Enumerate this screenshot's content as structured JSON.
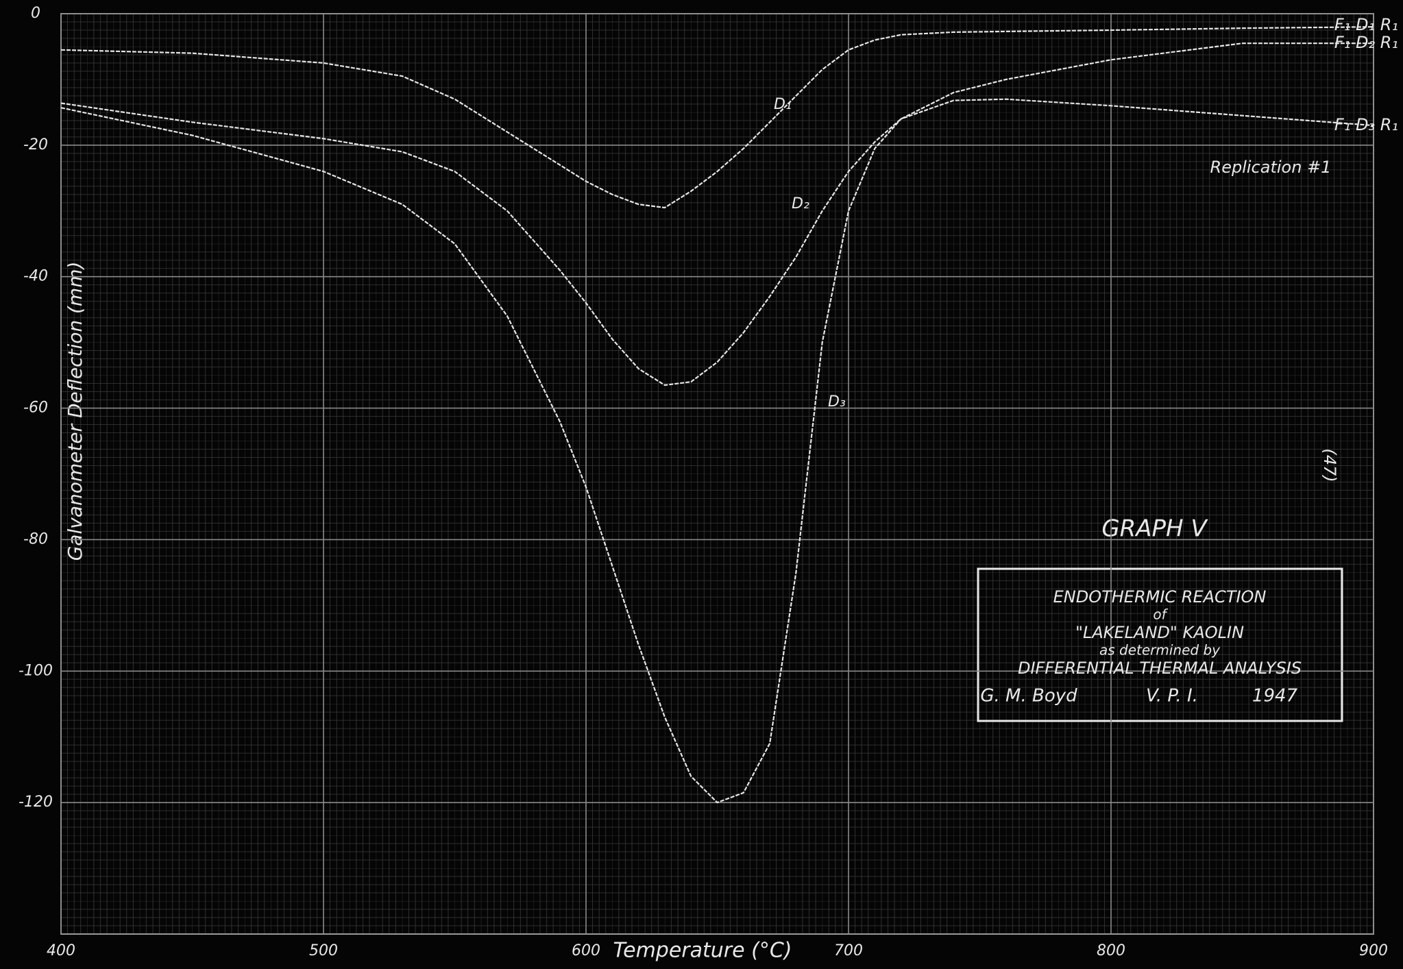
{
  "chart_data": {
    "type": "line",
    "title": "GRAPH V",
    "xlabel": "Temperature (°C)",
    "ylabel": "Galvanometer Deflection (mm)",
    "annotations": [
      "Replication #1",
      "(47)"
    ],
    "box_lines": [
      "ENDOTHERMIC REACTION",
      "of",
      "\"LAKELAND\" KAOLIN",
      "as determined by",
      "DIFFERENTIAL THERMAL ANALYSIS"
    ],
    "signature": [
      "G. M. Boyd",
      "V. P. I.",
      "1947"
    ],
    "x": [
      400,
      450,
      500,
      530,
      550,
      570,
      590,
      600,
      610,
      620,
      630,
      640,
      650,
      660,
      670,
      680,
      690,
      700,
      710,
      720,
      740,
      760,
      800,
      850,
      900
    ],
    "series": [
      {
        "name": "F₁ D₁ R₁",
        "label": "D₁",
        "color": "#e6e6e6",
        "values": [
          -5.5,
          -6,
          -7.5,
          -9.5,
          -13,
          -18,
          -23,
          -25.5,
          -27.5,
          -29,
          -29.5,
          -27,
          -24,
          -20.5,
          -16.5,
          -12.5,
          -8.5,
          -5.5,
          -4,
          -3.2,
          -2.8,
          -2.7,
          -2.5,
          -2.2,
          -2
        ]
      },
      {
        "name": "F₁ D₂ R₁",
        "label": "D₂",
        "color": "#e6e6e6",
        "values": [
          -13.6,
          -16.5,
          -19,
          -21,
          -24,
          -30,
          -39,
          -44,
          -49.5,
          -54,
          -56.5,
          -56,
          -53,
          -48.5,
          -43,
          -37,
          -30,
          -24,
          -19.5,
          -16,
          -12,
          -10,
          -7,
          -4.5,
          -4.5
        ]
      },
      {
        "name": "F₁ D₃ R₁",
        "label": "D₃",
        "color": "#e6e6e6",
        "values": [
          -14.3,
          -18.5,
          -24,
          -29,
          -35,
          -46,
          -62,
          -72,
          -84,
          -96,
          -107,
          -116,
          -120,
          -118.5,
          -111,
          -85,
          -50,
          -30,
          -20.5,
          -16,
          -13.2,
          -13,
          -14,
          -15.5,
          -17
        ]
      }
    ],
    "xlim": [
      400,
      900
    ],
    "ylim": [
      -140,
      0
    ],
    "xticks": [
      400,
      500,
      600,
      700,
      800,
      900
    ],
    "yticks": [
      0,
      -20,
      -40,
      -60,
      -80,
      -100,
      -120
    ],
    "grid": true
  }
}
